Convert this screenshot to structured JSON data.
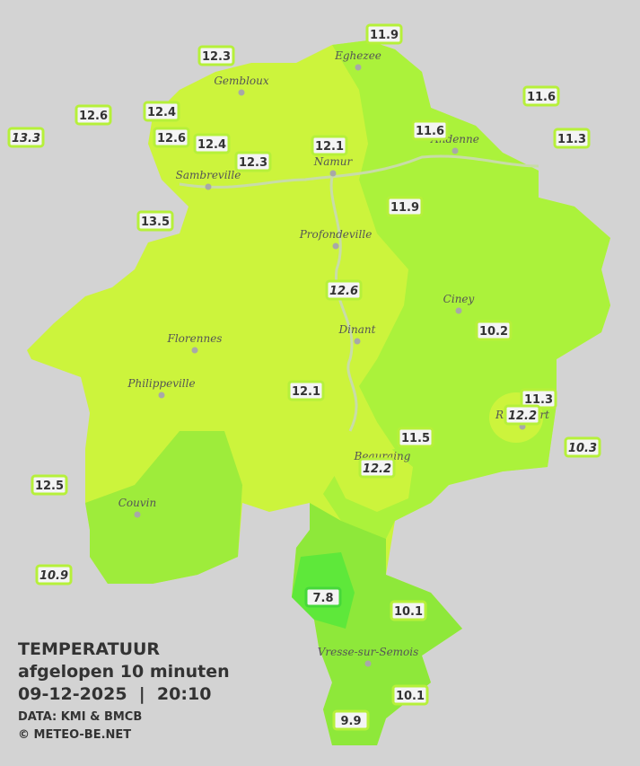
{
  "title": "TEMPERATUUR",
  "subtitle": "afgelopen 10 minuten",
  "datetime": "09-12-2025  |  20:10",
  "source": "DATA: KMI & BMCB",
  "copyright": "© METEO-BE.NET",
  "towns": [
    "Eghezee",
    "Gembloux",
    "Andenne",
    "Namur",
    "Sambreville",
    "Profondeville",
    "Ciney",
    "Dinant",
    "Florennes",
    "Philippeville",
    "Rochefort",
    "Beauraing",
    "Couvin",
    "Vresse-sur-Semois"
  ],
  "stations": [
    "11.9",
    "12.3",
    "11.6",
    "12.6",
    "12.4",
    "12.6",
    "12.4",
    "11.6",
    "12.1",
    "11.3",
    "13.3",
    "12.3",
    "11.9",
    "13.5",
    "12.6",
    "10.2",
    "12.1",
    "11.3",
    "12.2",
    "11.5",
    "10.3",
    "12.2",
    "12.5",
    "10.9",
    "7.8",
    "10.1",
    "10.1",
    "9.9"
  ]
}
